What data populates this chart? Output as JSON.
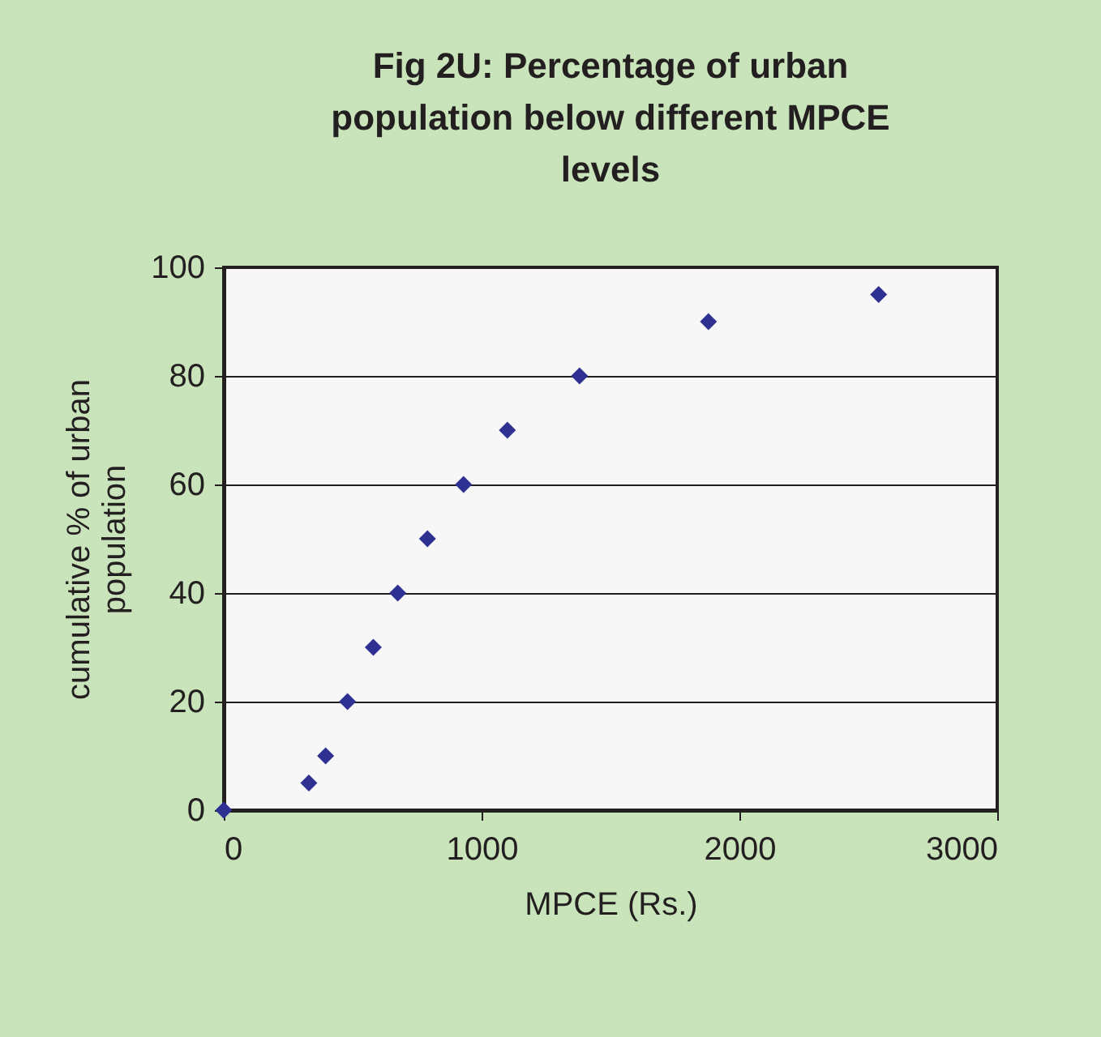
{
  "chart_data": {
    "type": "scatter",
    "title": "Fig 2U: Percentage of urban population below different MPCE levels",
    "xlabel": "MPCE (Rs.)",
    "ylabel": "cumulative % of urban population",
    "x": [
      0,
      330,
      395,
      480,
      580,
      675,
      790,
      930,
      1100,
      1380,
      1880,
      2540
    ],
    "series": [
      {
        "color": "#2e3192",
        "values": [
          0,
          5,
          10,
          20,
          30,
          40,
          50,
          60,
          70,
          80,
          90,
          95
        ]
      }
    ],
    "xlim": [
      0,
      3000
    ],
    "xticks": [
      0,
      1000,
      2000,
      3000
    ],
    "ylim": [
      0,
      100
    ],
    "yticks": [
      0,
      20,
      40,
      60,
      80,
      100
    ],
    "grid": "y",
    "marker": "diamond",
    "legend": false
  }
}
